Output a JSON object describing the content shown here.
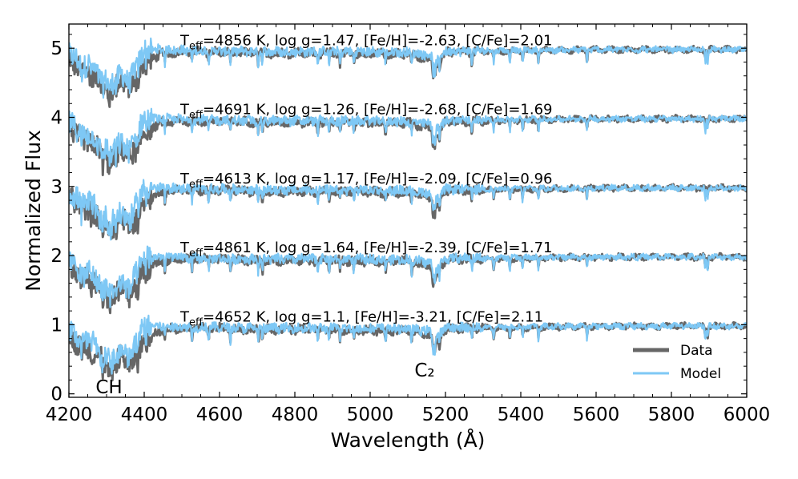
{
  "chart_data": {
    "type": "line",
    "xlabel": "Wavelength (Å)",
    "ylabel": "Normalized Flux",
    "xlim": [
      4200,
      6000
    ],
    "ylim": [
      -0.05,
      5.35
    ],
    "xticks": [
      4200,
      4400,
      4600,
      4800,
      5000,
      5200,
      5400,
      5600,
      5800,
      6000
    ],
    "yticks": [
      0,
      1,
      2,
      3,
      4,
      5
    ],
    "grid": false,
    "legend": {
      "placement": "bottom-right",
      "entries": [
        {
          "label": "Data",
          "color": "#666666"
        },
        {
          "label": "Model",
          "color": "#7ec8f5"
        }
      ]
    },
    "annotations": [
      {
        "text": "CH",
        "x": 4310,
        "y": 0.06
      },
      {
        "text": "C₂",
        "x": 5155,
        "y": 0.27
      }
    ],
    "spectra": [
      {
        "offset": 4,
        "label": {
          "main": "T",
          "sub": "eff",
          "rest": "=4856 K, log g=1.47, [Fe/H]=-2.63, [C/Fe]=2.01"
        }
      },
      {
        "offset": 3,
        "label": {
          "main": "T",
          "sub": "eff",
          "rest": "=4691 K, log g=1.26, [Fe/H]=-2.68, [C/Fe]=1.69"
        }
      },
      {
        "offset": 2,
        "label": {
          "main": "T",
          "sub": "eff",
          "rest": "=4613 K, log g=1.17, [Fe/H]=-2.09, [C/Fe]=0.96"
        }
      },
      {
        "offset": 1,
        "label": {
          "main": "T",
          "sub": "eff",
          "rest": "=4861 K, log g=1.64, [Fe/H]=-2.39, [C/Fe]=1.71"
        }
      },
      {
        "offset": 0,
        "label": {
          "main": "T",
          "sub": "eff",
          "rest": "=4652 K, log g=1.1, [Fe/H]=-3.21, [C/Fe]=2.11"
        }
      }
    ],
    "continuum_profile": {
      "x": [
        4200,
        4220,
        4240,
        4260,
        4280,
        4300,
        4310,
        4320,
        4340,
        4360,
        4380,
        4400,
        4450,
        4500,
        4600,
        4700,
        4800,
        4900,
        5000,
        5100,
        5160,
        5170,
        5200,
        5400,
        5600,
        5800,
        6000
      ],
      "data_y": [
        0.9,
        0.72,
        0.7,
        0.62,
        0.55,
        0.4,
        0.25,
        0.45,
        0.55,
        0.42,
        0.55,
        0.8,
        0.93,
        0.95,
        0.95,
        0.93,
        0.93,
        0.93,
        0.92,
        0.92,
        0.85,
        0.7,
        0.94,
        0.96,
        0.98,
        0.98,
        0.98
      ],
      "model_y": [
        0.92,
        0.84,
        0.72,
        0.8,
        0.55,
        0.55,
        0.4,
        0.55,
        0.62,
        0.5,
        0.75,
        0.98,
        0.98,
        0.97,
        0.96,
        0.95,
        0.95,
        0.95,
        0.95,
        0.94,
        0.9,
        0.78,
        0.96,
        0.97,
        0.98,
        0.98,
        0.98
      ]
    }
  }
}
